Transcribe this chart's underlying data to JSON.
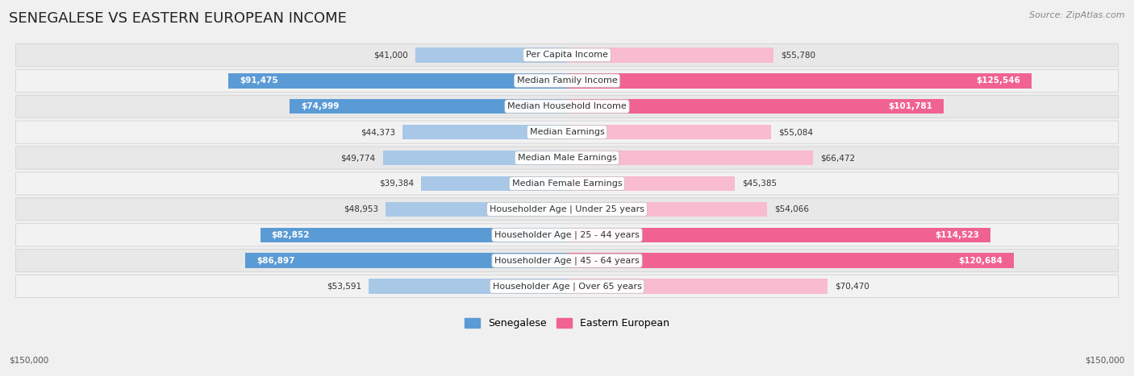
{
  "title": "SENEGALESE VS EASTERN EUROPEAN INCOME",
  "source": "Source: ZipAtlas.com",
  "categories": [
    "Per Capita Income",
    "Median Family Income",
    "Median Household Income",
    "Median Earnings",
    "Median Male Earnings",
    "Median Female Earnings",
    "Householder Age | Under 25 years",
    "Householder Age | 25 - 44 years",
    "Householder Age | 45 - 64 years",
    "Householder Age | Over 65 years"
  ],
  "senegalese": [
    41000,
    91475,
    74999,
    44373,
    49774,
    39384,
    48953,
    82852,
    86897,
    53591
  ],
  "eastern_european": [
    55780,
    125546,
    101781,
    55084,
    66472,
    45385,
    54066,
    114523,
    120684,
    70470
  ],
  "max_val": 150000,
  "sen_color_strong": "#5b9bd5",
  "sen_color_light": "#a9c8e8",
  "ee_color_strong": "#f06292",
  "ee_color_light": "#f8bbd0",
  "bg_color": "#f0f0f0",
  "title_fontsize": 13,
  "label_fontsize": 8.0,
  "value_fontsize": 7.5,
  "legend_fontsize": 9,
  "source_fontsize": 8
}
